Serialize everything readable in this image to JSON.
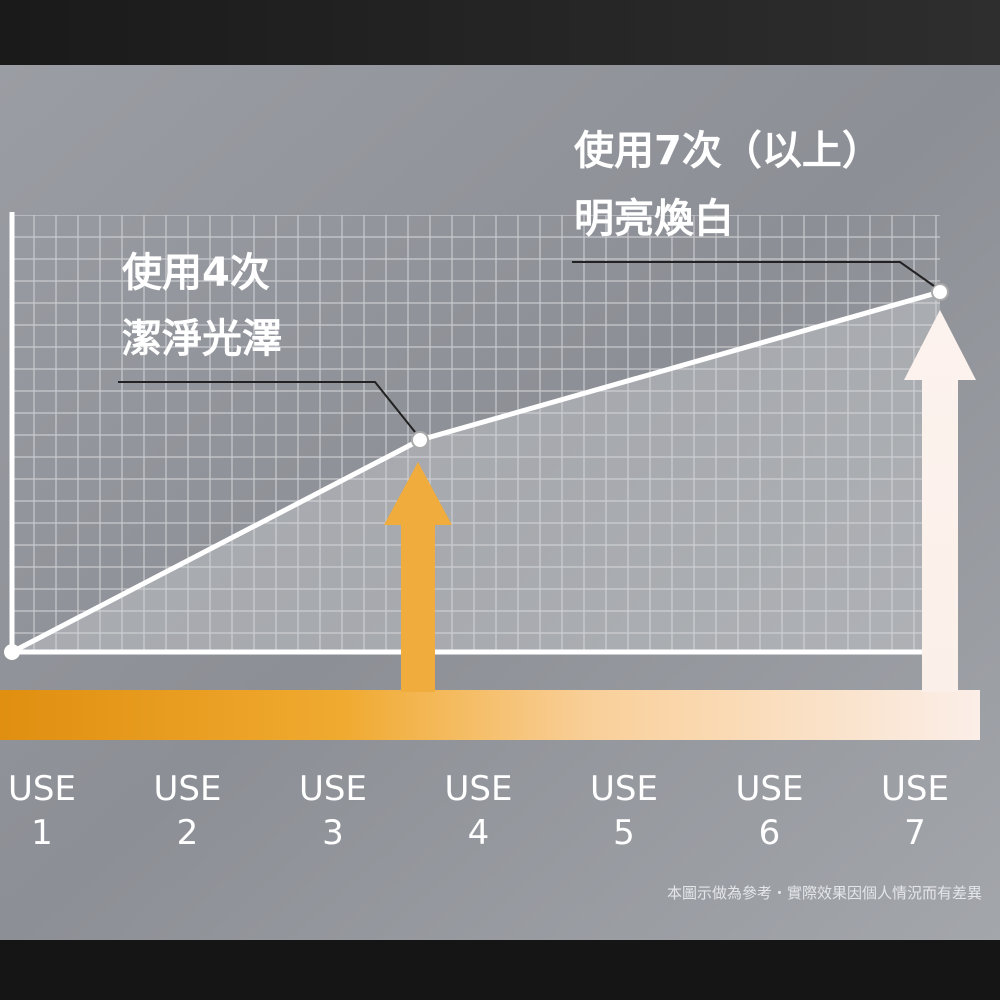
{
  "annotations": [
    {
      "lines": [
        "使用4次",
        "潔淨光澤"
      ]
    },
    {
      "lines": [
        "使用7次（以上）",
        "明亮煥白"
      ]
    }
  ],
  "x_labels": [
    [
      "USE",
      "1"
    ],
    [
      "USE",
      "2"
    ],
    [
      "USE",
      "3"
    ],
    [
      "USE",
      "4"
    ],
    [
      "USE",
      "5"
    ],
    [
      "USE",
      "6"
    ],
    [
      "USE",
      "7"
    ]
  ],
  "footnote": "本圖示做為參考・實際效果因個人情況而有差異"
}
